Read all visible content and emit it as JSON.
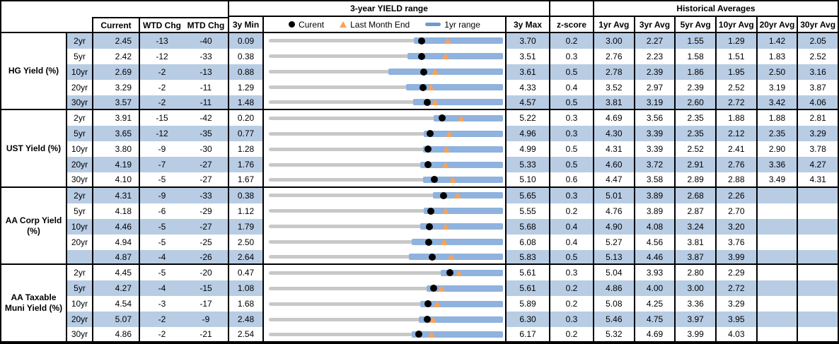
{
  "table": {
    "headers": {
      "range_title": "3-year YIELD range",
      "hist_title": "Historical Averages",
      "current": "Current",
      "wtd": "WTD Chg",
      "mtd": "MTD Chg",
      "min3y": "3y Min",
      "max3y": "3y Max",
      "zscore": "z-score",
      "avg_cols": [
        "1yr Avg",
        "3yr Avg",
        "5yr Avg",
        "10yr Avg",
        "20yr Avg",
        "30yr Avg"
      ]
    },
    "legend": {
      "current_label": "Curent",
      "lme_label": "Last Month End",
      "range_label": "1yr range"
    },
    "colors": {
      "band": "#b8cce4",
      "range_bar": "#8fb2de",
      "track": "#c8c8c8",
      "triangle": "#f9a257",
      "dot": "#000000",
      "legend_bar": "#6d9bd0"
    },
    "sections": [
      {
        "label": "HG Yield (%)",
        "rows": [
          {
            "tenor": "2yr",
            "current": "2.45",
            "wtd": "-13",
            "mtd": "-40",
            "min": "0.09",
            "max": "3.70",
            "z": "0.2",
            "avgs": [
              "3.00",
              "2.27",
              "1.55",
              "1.29",
              "1.42",
              "2.05"
            ]
          },
          {
            "tenor": "5yr",
            "current": "2.42",
            "wtd": "-12",
            "mtd": "-33",
            "min": "0.38",
            "max": "3.51",
            "z": "0.3",
            "avgs": [
              "2.76",
              "2.23",
              "1.58",
              "1.51",
              "1.83",
              "2.52"
            ]
          },
          {
            "tenor": "10yr",
            "current": "2.69",
            "wtd": "-2",
            "mtd": "-13",
            "min": "0.88",
            "max": "3.61",
            "z": "0.5",
            "avgs": [
              "2.78",
              "2.39",
              "1.86",
              "1.95",
              "2.50",
              "3.16"
            ]
          },
          {
            "tenor": "20yr",
            "current": "3.29",
            "wtd": "-2",
            "mtd": "-11",
            "min": "1.29",
            "max": "4.33",
            "z": "0.4",
            "avgs": [
              "3.52",
              "2.97",
              "2.39",
              "2.52",
              "3.19",
              "3.87"
            ]
          },
          {
            "tenor": "30yr",
            "current": "3.57",
            "wtd": "-2",
            "mtd": "-11",
            "min": "1.48",
            "max": "4.57",
            "z": "0.5",
            "avgs": [
              "3.81",
              "3.19",
              "2.60",
              "2.72",
              "3.42",
              "4.06"
            ]
          }
        ]
      },
      {
        "label": "UST Yield (%)",
        "rows": [
          {
            "tenor": "2yr",
            "current": "3.91",
            "wtd": "-15",
            "mtd": "-42",
            "min": "0.20",
            "max": "5.22",
            "z": "0.3",
            "avgs": [
              "4.69",
              "3.56",
              "2.35",
              "1.88",
              "1.88",
              "2.81"
            ]
          },
          {
            "tenor": "5yr",
            "current": "3.65",
            "wtd": "-12",
            "mtd": "-35",
            "min": "0.77",
            "max": "4.96",
            "z": "0.3",
            "avgs": [
              "4.30",
              "3.39",
              "2.35",
              "2.12",
              "2.35",
              "3.29"
            ]
          },
          {
            "tenor": "10yr",
            "current": "3.80",
            "wtd": "-9",
            "mtd": "-30",
            "min": "1.28",
            "max": "4.99",
            "z": "0.5",
            "avgs": [
              "4.31",
              "3.39",
              "2.52",
              "2.41",
              "2.90",
              "3.78"
            ]
          },
          {
            "tenor": "20yr",
            "current": "4.19",
            "wtd": "-7",
            "mtd": "-27",
            "min": "1.76",
            "max": "5.33",
            "z": "0.5",
            "avgs": [
              "4.60",
              "3.72",
              "2.91",
              "2.76",
              "3.36",
              "4.27"
            ]
          },
          {
            "tenor": "30yr",
            "current": "4.10",
            "wtd": "-5",
            "mtd": "-27",
            "min": "1.67",
            "max": "5.10",
            "z": "0.6",
            "avgs": [
              "4.47",
              "3.58",
              "2.89",
              "2.88",
              "3.49",
              "4.31"
            ]
          }
        ]
      },
      {
        "label": "AA Corp Yield (%)",
        "rows": [
          {
            "tenor": "2yr",
            "current": "4.31",
            "wtd": "-9",
            "mtd": "-33",
            "min": "0.38",
            "max": "5.65",
            "z": "0.3",
            "avgs": [
              "5.01",
              "3.89",
              "2.68",
              "2.26",
              "",
              ""
            ]
          },
          {
            "tenor": "5yr",
            "current": "4.18",
            "wtd": "-6",
            "mtd": "-29",
            "min": "1.12",
            "max": "5.55",
            "z": "0.2",
            "avgs": [
              "4.76",
              "3.89",
              "2.87",
              "2.70",
              "",
              ""
            ]
          },
          {
            "tenor": "10yr",
            "current": "4.46",
            "wtd": "-5",
            "mtd": "-27",
            "min": "1.79",
            "max": "5.68",
            "z": "0.4",
            "avgs": [
              "4.90",
              "4.08",
              "3.24",
              "3.20",
              "",
              ""
            ]
          },
          {
            "tenor": "20yr",
            "current": "4.94",
            "wtd": "-5",
            "mtd": "-25",
            "min": "2.50",
            "max": "6.08",
            "z": "0.4",
            "avgs": [
              "5.27",
              "4.56",
              "3.81",
              "3.76",
              "",
              ""
            ]
          },
          {
            "tenor": "",
            "current": "4.87",
            "wtd": "-4",
            "mtd": "-26",
            "min": "2.64",
            "max": "5.83",
            "z": "0.5",
            "avgs": [
              "5.13",
              "4.46",
              "3.87",
              "3.99",
              "",
              ""
            ]
          }
        ]
      },
      {
        "label": "AA Taxable Muni Yield (%)",
        "rows": [
          {
            "tenor": "2yr",
            "current": "4.45",
            "wtd": "-5",
            "mtd": "-20",
            "min": "0.47",
            "max": "5.61",
            "z": "0.3",
            "avgs": [
              "5.04",
              "3.93",
              "2.80",
              "2.29",
              "",
              ""
            ]
          },
          {
            "tenor": "5yr",
            "current": "4.27",
            "wtd": "-4",
            "mtd": "-15",
            "min": "1.08",
            "max": "5.61",
            "z": "0.2",
            "avgs": [
              "4.86",
              "4.00",
              "3.00",
              "2.72",
              "",
              ""
            ]
          },
          {
            "tenor": "10yr",
            "current": "4.54",
            "wtd": "-3",
            "mtd": "-17",
            "min": "1.68",
            "max": "5.89",
            "z": "0.2",
            "avgs": [
              "5.08",
              "4.25",
              "3.36",
              "3.29",
              "",
              ""
            ]
          },
          {
            "tenor": "20yr",
            "current": "5.07",
            "wtd": "-2",
            "mtd": "-9",
            "min": "2.48",
            "max": "6.30",
            "z": "0.3",
            "avgs": [
              "5.46",
              "4.75",
              "3.97",
              "3.95",
              "",
              ""
            ]
          },
          {
            "tenor": "30yr",
            "current": "4.86",
            "wtd": "-2",
            "mtd": "-21",
            "min": "2.54",
            "max": "6.17",
            "z": "0.2",
            "avgs": [
              "5.32",
              "4.69",
              "3.99",
              "4.03",
              "",
              ""
            ]
          }
        ]
      }
    ]
  },
  "chart_data": {
    "type": "bullet-range",
    "title": "3-year YIELD range",
    "units": "yield %",
    "legend": [
      "Curent (black dot)",
      "Last Month End (orange triangle)",
      "1yr range (blue bar)"
    ],
    "note": "Each row: gray line spans 3y Min to 3y Max; blue bar is 1yr range (yr1_low to 3y max); dot = current; triangle = last month end (current - MTD chg).",
    "rows": [
      {
        "section": "HG Yield (%)",
        "tenor": "2yr",
        "min_3y": 0.09,
        "yr1_low": 2.33,
        "current": 2.45,
        "last_month_end": 2.85,
        "max_3y": 3.7
      },
      {
        "section": "HG Yield (%)",
        "tenor": "5yr",
        "min_3y": 0.38,
        "yr1_low": 2.23,
        "current": 2.42,
        "last_month_end": 2.75,
        "max_3y": 3.51
      },
      {
        "section": "HG Yield (%)",
        "tenor": "10yr",
        "min_3y": 0.88,
        "yr1_low": 2.27,
        "current": 2.69,
        "last_month_end": 2.82,
        "max_3y": 3.61
      },
      {
        "section": "HG Yield (%)",
        "tenor": "20yr",
        "min_3y": 1.29,
        "yr1_low": 3.07,
        "current": 3.29,
        "last_month_end": 3.4,
        "max_3y": 4.33
      },
      {
        "section": "HG Yield (%)",
        "tenor": "30yr",
        "min_3y": 1.48,
        "yr1_low": 3.38,
        "current": 3.57,
        "last_month_end": 3.68,
        "max_3y": 4.57
      },
      {
        "section": "UST Yield (%)",
        "tenor": "2yr",
        "min_3y": 0.2,
        "yr1_low": 3.74,
        "current": 3.91,
        "last_month_end": 4.33,
        "max_3y": 5.22
      },
      {
        "section": "UST Yield (%)",
        "tenor": "5yr",
        "min_3y": 0.77,
        "yr1_low": 3.54,
        "current": 3.65,
        "last_month_end": 4.0,
        "max_3y": 4.96
      },
      {
        "section": "UST Yield (%)",
        "tenor": "10yr",
        "min_3y": 1.28,
        "yr1_low": 3.72,
        "current": 3.8,
        "last_month_end": 4.1,
        "max_3y": 4.99
      },
      {
        "section": "UST Yield (%)",
        "tenor": "20yr",
        "min_3y": 1.76,
        "yr1_low": 4.07,
        "current": 4.19,
        "last_month_end": 4.46,
        "max_3y": 5.33
      },
      {
        "section": "UST Yield (%)",
        "tenor": "30yr",
        "min_3y": 1.67,
        "yr1_low": 3.93,
        "current": 4.1,
        "last_month_end": 4.37,
        "max_3y": 5.1
      },
      {
        "section": "AA Corp Yield (%)",
        "tenor": "2yr",
        "min_3y": 0.38,
        "yr1_low": 4.08,
        "current": 4.31,
        "last_month_end": 4.64,
        "max_3y": 5.65
      },
      {
        "section": "AA Corp Yield (%)",
        "tenor": "5yr",
        "min_3y": 1.12,
        "yr1_low": 4.05,
        "current": 4.18,
        "last_month_end": 4.47,
        "max_3y": 5.55
      },
      {
        "section": "AA Corp Yield (%)",
        "tenor": "10yr",
        "min_3y": 1.79,
        "yr1_low": 4.3,
        "current": 4.46,
        "last_month_end": 4.73,
        "max_3y": 5.68
      },
      {
        "section": "AA Corp Yield (%)",
        "tenor": "20yr",
        "min_3y": 2.5,
        "yr1_low": 4.69,
        "current": 4.94,
        "last_month_end": 5.19,
        "max_3y": 6.08
      },
      {
        "section": "AA Corp Yield (%)",
        "tenor": "30yr",
        "min_3y": 2.64,
        "yr1_low": 4.55,
        "current": 4.87,
        "last_month_end": 5.13,
        "max_3y": 5.83
      },
      {
        "section": "AA Taxable Muni Yield (%)",
        "tenor": "2yr",
        "min_3y": 0.47,
        "yr1_low": 4.24,
        "current": 4.45,
        "last_month_end": 4.65,
        "max_3y": 5.61
      },
      {
        "section": "AA Taxable Muni Yield (%)",
        "tenor": "5yr",
        "min_3y": 1.08,
        "yr1_low": 4.13,
        "current": 4.27,
        "last_month_end": 4.42,
        "max_3y": 5.61
      },
      {
        "section": "AA Taxable Muni Yield (%)",
        "tenor": "10yr",
        "min_3y": 1.68,
        "yr1_low": 4.4,
        "current": 4.54,
        "last_month_end": 4.71,
        "max_3y": 5.89
      },
      {
        "section": "AA Taxable Muni Yield (%)",
        "tenor": "20yr",
        "min_3y": 2.48,
        "yr1_low": 4.93,
        "current": 5.07,
        "last_month_end": 5.16,
        "max_3y": 6.3
      },
      {
        "section": "AA Taxable Muni Yield (%)",
        "tenor": "30yr",
        "min_3y": 2.54,
        "yr1_low": 4.76,
        "current": 4.86,
        "last_month_end": 5.07,
        "max_3y": 6.17
      }
    ]
  }
}
